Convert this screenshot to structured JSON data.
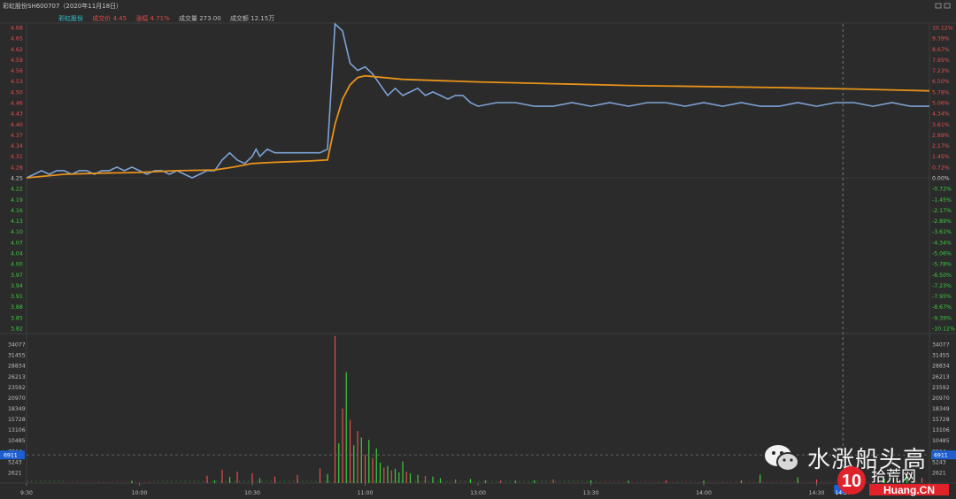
{
  "header": {
    "title": "彩虹股份SH600707（2020年11月18日）",
    "legend": [
      {
        "label": "彩虹股份",
        "color": "#2fc8d8"
      },
      {
        "label": "成交价 4.45",
        "color": "#e04848"
      },
      {
        "label": "涨幅 4.71%",
        "color": "#e04848"
      },
      {
        "label": "成交量 273.00",
        "color": "#bbbbbb"
      },
      {
        "label": "成交额 12.15万",
        "color": "#bbbbbb"
      }
    ]
  },
  "watermark": {
    "text": "水涨船头高",
    "logo_text": "拾荒网",
    "logo_sub": "Huang.CN",
    "logo_number": "10"
  },
  "chart_data": {
    "type": "line",
    "prev_close": 4.25,
    "price_ylim": [
      3.82,
      4.68
    ],
    "price_ticks": [
      "4.68",
      "4.65",
      "4.62",
      "4.59",
      "4.56",
      "4.53",
      "4.50",
      "4.46",
      "4.43",
      "4.40",
      "4.37",
      "4.34",
      "4.31",
      "4.28",
      "4.25",
      "4.22",
      "4.19",
      "4.16",
      "4.13",
      "4.10",
      "4.07",
      "4.04",
      "4.00",
      "3.97",
      "3.94",
      "3.91",
      "3.88",
      "3.85",
      "3.82"
    ],
    "pct_ticks": [
      "10.12%",
      "9.39%",
      "8.67%",
      "7.95%",
      "7.23%",
      "6.50%",
      "5.78%",
      "5.06%",
      "4.34%",
      "3.61%",
      "2.89%",
      "2.17%",
      "1.45%",
      "0.72%",
      "0.00%",
      "-0.72%",
      "-1.45%",
      "-2.17%",
      "-2.89%",
      "-3.61%",
      "-4.34%",
      "-5.06%",
      "-5.78%",
      "-6.50%",
      "-7.23%",
      "-7.95%",
      "-8.67%",
      "-9.39%",
      "-10.12%"
    ],
    "time_ticks": [
      "9:30",
      "10:00",
      "10:30",
      "11:00",
      "13:00",
      "13:30",
      "14:00",
      "14:30",
      "15:00"
    ],
    "cursor_time": "14:37",
    "cursor_volume": "6911",
    "volume_ticks": [
      "34077",
      "31455",
      "28834",
      "26213",
      "23592",
      "20970",
      "18349",
      "15728",
      "13106",
      "10485",
      "7864",
      "5243",
      "2621"
    ],
    "volume_ylim": [
      0,
      36700
    ],
    "series": [
      {
        "role": "price",
        "color": "#7da3d6",
        "x": [
          0,
          2,
          4,
          6,
          8,
          10,
          12,
          14,
          16,
          18,
          20,
          22,
          24,
          26,
          28,
          30,
          32,
          34,
          36,
          38,
          40,
          42,
          44,
          46,
          48,
          50,
          52,
          54,
          56,
          58,
          60,
          61,
          62,
          64,
          66,
          68,
          70,
          72,
          74,
          76,
          78,
          80,
          82,
          84,
          86,
          88,
          90,
          92,
          94,
          96,
          98,
          100,
          102,
          104,
          106,
          108,
          110,
          112,
          114,
          116,
          118,
          120,
          125,
          130,
          135,
          140,
          145,
          150,
          155,
          160,
          165,
          170,
          175,
          180,
          185,
          190,
          195,
          200,
          205,
          210,
          215,
          220,
          225,
          230,
          235,
          240
        ],
        "y": [
          4.25,
          4.26,
          4.27,
          4.26,
          4.27,
          4.27,
          4.26,
          4.27,
          4.27,
          4.26,
          4.27,
          4.27,
          4.28,
          4.27,
          4.28,
          4.27,
          4.26,
          4.27,
          4.27,
          4.26,
          4.27,
          4.26,
          4.25,
          4.26,
          4.27,
          4.27,
          4.3,
          4.32,
          4.3,
          4.29,
          4.31,
          4.33,
          4.31,
          4.33,
          4.32,
          4.32,
          4.32,
          4.32,
          4.32,
          4.32,
          4.32,
          4.33,
          4.68,
          4.66,
          4.57,
          4.55,
          4.56,
          4.54,
          4.51,
          4.48,
          4.5,
          4.48,
          4.49,
          4.5,
          4.48,
          4.49,
          4.48,
          4.47,
          4.48,
          4.48,
          4.46,
          4.45,
          4.46,
          4.46,
          4.45,
          4.45,
          4.46,
          4.45,
          4.46,
          4.45,
          4.46,
          4.46,
          4.45,
          4.46,
          4.45,
          4.46,
          4.45,
          4.45,
          4.46,
          4.45,
          4.46,
          4.46,
          4.45,
          4.46,
          4.45,
          4.45
        ]
      },
      {
        "role": "average",
        "color": "#e8921a",
        "x": [
          0,
          10,
          20,
          30,
          40,
          50,
          55,
          60,
          65,
          70,
          75,
          80,
          82,
          84,
          86,
          88,
          90,
          95,
          100,
          120,
          140,
          160,
          180,
          200,
          220,
          240
        ],
        "y": [
          4.25,
          4.26,
          4.263,
          4.265,
          4.27,
          4.272,
          4.28,
          4.29,
          4.293,
          4.295,
          4.297,
          4.3,
          4.4,
          4.47,
          4.51,
          4.53,
          4.535,
          4.53,
          4.525,
          4.518,
          4.513,
          4.508,
          4.505,
          4.502,
          4.498,
          4.493
        ]
      }
    ],
    "volume_bars": [
      {
        "x": 28,
        "v": 600,
        "c": "g"
      },
      {
        "x": 48,
        "v": 1800,
        "c": "r"
      },
      {
        "x": 50,
        "v": 700,
        "c": "g"
      },
      {
        "x": 52,
        "v": 3300,
        "c": "r"
      },
      {
        "x": 54,
        "v": 1500,
        "c": "g"
      },
      {
        "x": 56,
        "v": 2800,
        "c": "r"
      },
      {
        "x": 60,
        "v": 2400,
        "c": "r"
      },
      {
        "x": 62,
        "v": 1200,
        "c": "g"
      },
      {
        "x": 66,
        "v": 1600,
        "c": "r"
      },
      {
        "x": 72,
        "v": 2000,
        "c": "r"
      },
      {
        "x": 78,
        "v": 3600,
        "c": "r"
      },
      {
        "x": 80,
        "v": 2200,
        "c": "g"
      },
      {
        "x": 82,
        "v": 36100,
        "c": "r"
      },
      {
        "x": 83,
        "v": 9800,
        "c": "g"
      },
      {
        "x": 84,
        "v": 18300,
        "c": "r"
      },
      {
        "x": 85,
        "v": 27200,
        "c": "g"
      },
      {
        "x": 86,
        "v": 15500,
        "c": "r"
      },
      {
        "x": 87,
        "v": 9300,
        "c": "g"
      },
      {
        "x": 88,
        "v": 12800,
        "c": "r"
      },
      {
        "x": 89,
        "v": 11200,
        "c": "g"
      },
      {
        "x": 90,
        "v": 7000,
        "c": "r"
      },
      {
        "x": 91,
        "v": 10600,
        "c": "g"
      },
      {
        "x": 92,
        "v": 6200,
        "c": "r"
      },
      {
        "x": 93,
        "v": 8500,
        "c": "g"
      },
      {
        "x": 94,
        "v": 5000,
        "c": "g"
      },
      {
        "x": 95,
        "v": 3800,
        "c": "r"
      },
      {
        "x": 96,
        "v": 4200,
        "c": "g"
      },
      {
        "x": 97,
        "v": 3100,
        "c": "r"
      },
      {
        "x": 98,
        "v": 3500,
        "c": "g"
      },
      {
        "x": 99,
        "v": 2600,
        "c": "g"
      },
      {
        "x": 100,
        "v": 5300,
        "c": "g"
      },
      {
        "x": 101,
        "v": 2800,
        "c": "r"
      },
      {
        "x": 102,
        "v": 2400,
        "c": "g"
      },
      {
        "x": 104,
        "v": 2000,
        "c": "g"
      },
      {
        "x": 106,
        "v": 1700,
        "c": "r"
      },
      {
        "x": 108,
        "v": 1600,
        "c": "g"
      },
      {
        "x": 110,
        "v": 1200,
        "c": "g"
      },
      {
        "x": 114,
        "v": 900,
        "c": "r"
      },
      {
        "x": 118,
        "v": 1000,
        "c": "g"
      },
      {
        "x": 122,
        "v": 700,
        "c": "g"
      },
      {
        "x": 126,
        "v": 600,
        "c": "r"
      },
      {
        "x": 130,
        "v": 600,
        "c": "g"
      },
      {
        "x": 135,
        "v": 700,
        "c": "g"
      },
      {
        "x": 140,
        "v": 900,
        "c": "r"
      },
      {
        "x": 150,
        "v": 700,
        "c": "g"
      },
      {
        "x": 160,
        "v": 600,
        "c": "g"
      },
      {
        "x": 170,
        "v": 700,
        "c": "r"
      },
      {
        "x": 180,
        "v": 600,
        "c": "g"
      },
      {
        "x": 190,
        "v": 700,
        "c": "g"
      },
      {
        "x": 195,
        "v": 2100,
        "c": "g"
      },
      {
        "x": 205,
        "v": 1400,
        "c": "g"
      },
      {
        "x": 210,
        "v": 900,
        "c": "r"
      },
      {
        "x": 220,
        "v": 600,
        "c": "g"
      },
      {
        "x": 228,
        "v": 1100,
        "c": "g"
      },
      {
        "x": 234,
        "v": 1500,
        "c": "g"
      },
      {
        "x": 238,
        "v": 1300,
        "c": "r"
      }
    ]
  }
}
